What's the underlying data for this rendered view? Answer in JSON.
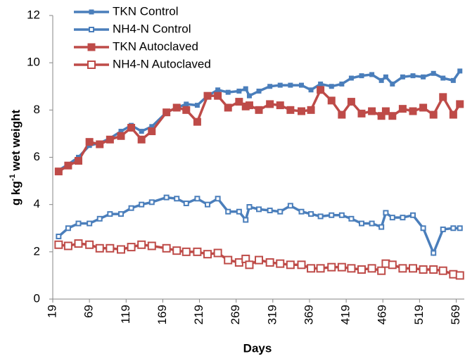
{
  "chart_data": {
    "type": "line",
    "xlabel": "Days",
    "ylabel_parts": [
      "g kg",
      "-1",
      " wet weight"
    ],
    "x": [
      27,
      40,
      54,
      69,
      83,
      97,
      112,
      126,
      140,
      154,
      174,
      188,
      201,
      216,
      230,
      244,
      258,
      273,
      282,
      287,
      300,
      315,
      329,
      343,
      358,
      371,
      384,
      399,
      413,
      426,
      440,
      454,
      467,
      473,
      482,
      496,
      510,
      524,
      538,
      551,
      565,
      574
    ],
    "series": [
      {
        "name": "TKN Control",
        "color": "#4a7ebb",
        "marker": "small-filled",
        "values": [
          5.45,
          5.7,
          6.0,
          6.5,
          6.6,
          6.8,
          7.1,
          7.35,
          7.1,
          7.3,
          7.9,
          8.1,
          8.25,
          8.2,
          8.6,
          8.85,
          8.75,
          8.8,
          8.9,
          8.6,
          8.8,
          9.0,
          9.05,
          9.05,
          9.05,
          8.85,
          9.1,
          9.0,
          9.1,
          9.35,
          9.45,
          9.5,
          9.25,
          9.4,
          9.1,
          9.4,
          9.45,
          9.4,
          9.55,
          9.35,
          9.25,
          9.65
        ]
      },
      {
        "name": "NH4-N Control",
        "color": "#4a7ebb",
        "marker": "small-hollow",
        "values": [
          2.65,
          3.0,
          3.2,
          3.2,
          3.4,
          3.6,
          3.6,
          3.85,
          4.0,
          4.1,
          4.3,
          4.25,
          4.05,
          4.25,
          4.0,
          4.25,
          3.7,
          3.7,
          3.35,
          3.9,
          3.8,
          3.75,
          3.7,
          3.95,
          3.7,
          3.6,
          3.5,
          3.55,
          3.55,
          3.4,
          3.2,
          3.2,
          3.05,
          3.65,
          3.45,
          3.45,
          3.55,
          3.0,
          1.95,
          2.95,
          3.0,
          3.0
        ]
      },
      {
        "name": "TKN Autoclaved",
        "color": "#be4b48",
        "marker": "large-filled",
        "values": [
          5.4,
          5.65,
          5.85,
          6.65,
          6.55,
          6.75,
          6.9,
          7.25,
          6.75,
          7.1,
          7.9,
          8.1,
          8.0,
          7.5,
          8.6,
          8.6,
          8.1,
          8.35,
          8.15,
          8.2,
          8.0,
          8.25,
          8.2,
          8.0,
          7.95,
          8.0,
          8.85,
          8.4,
          7.8,
          8.35,
          7.85,
          7.95,
          7.75,
          7.95,
          7.75,
          8.05,
          7.95,
          8.1,
          7.8,
          8.55,
          7.8,
          8.25
        ]
      },
      {
        "name": "NH4-N Autoclaved",
        "color": "#be4b48",
        "marker": "large-hollow",
        "values": [
          2.3,
          2.25,
          2.35,
          2.3,
          2.15,
          2.15,
          2.1,
          2.2,
          2.3,
          2.25,
          2.15,
          2.05,
          2.0,
          2.0,
          1.9,
          1.95,
          1.65,
          1.55,
          1.7,
          1.45,
          1.65,
          1.55,
          1.5,
          1.45,
          1.45,
          1.3,
          1.3,
          1.35,
          1.35,
          1.3,
          1.25,
          1.3,
          1.2,
          1.5,
          1.45,
          1.3,
          1.3,
          1.25,
          1.25,
          1.2,
          1.05,
          1.0
        ]
      }
    ],
    "xlim": [
      19,
      580
    ],
    "xticks": [
      19,
      69,
      119,
      169,
      219,
      269,
      319,
      369,
      419,
      469,
      519,
      569
    ],
    "ylim": [
      0,
      12
    ],
    "yticks": [
      0,
      2,
      4,
      6,
      8,
      10,
      12
    ],
    "legend": "top-left",
    "grid": false
  }
}
